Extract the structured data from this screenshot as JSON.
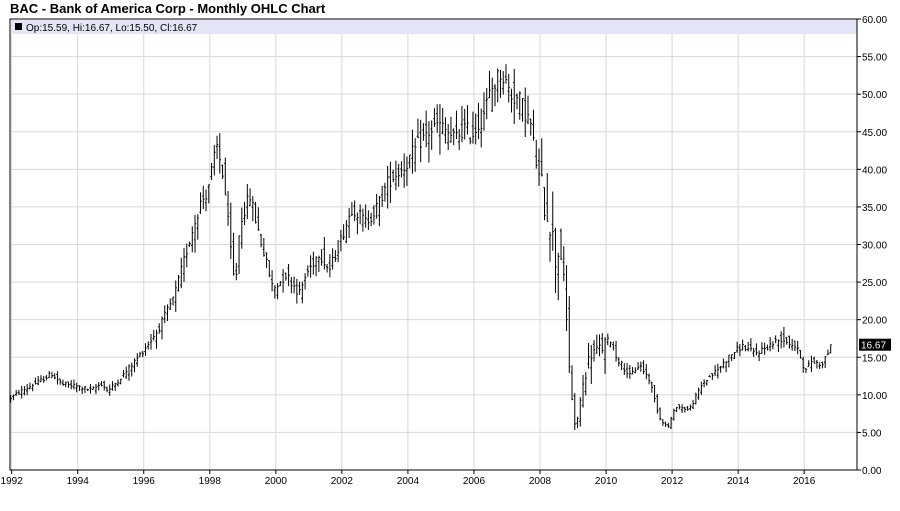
{
  "header": {
    "title": "BAC - Bank of America Corp - Monthly OHLC Chart"
  },
  "legend": {
    "text": "Op:15.59, Hi:16.67, Lo:15.50, Cl:16.67"
  },
  "last_price_label": "16.67",
  "colors": {
    "bar": "#000000",
    "grid": "#d8d8d8",
    "legend_band": "#e4e6f7",
    "frame": "#000000"
  },
  "chart_data": {
    "type": "ohlc",
    "grid": true,
    "x_unit": "year",
    "x_ticks": [
      "1992",
      "1994",
      "1996",
      "1998",
      "2000",
      "2002",
      "2004",
      "2006",
      "2008",
      "2010",
      "2012",
      "2014",
      "2016"
    ],
    "y_ticks": [
      "0.00",
      "5.00",
      "10.00",
      "15.00",
      "20.00",
      "25.00",
      "30.00",
      "35.00",
      "40.00",
      "45.00",
      "50.00",
      "55.00",
      "60.00"
    ],
    "xlim": [
      1991.95,
      2017.6
    ],
    "ylim": [
      0,
      60
    ],
    "last": {
      "open": 15.59,
      "high": 16.67,
      "low": 15.5,
      "close": 16.67
    },
    "close_path": [
      [
        1992.0,
        9.5
      ],
      [
        1992.5,
        10.8
      ],
      [
        1993.0,
        12.0
      ],
      [
        1993.3,
        12.8
      ],
      [
        1993.6,
        11.4
      ],
      [
        1994.0,
        11.2
      ],
      [
        1994.5,
        10.6
      ],
      [
        1994.8,
        11.5
      ],
      [
        1995.0,
        10.5
      ],
      [
        1995.5,
        12.8
      ],
      [
        1996.0,
        15.5
      ],
      [
        1996.5,
        18.5
      ],
      [
        1997.0,
        23.0
      ],
      [
        1997.5,
        31.0
      ],
      [
        1997.8,
        35.5
      ],
      [
        1998.0,
        37.0
      ],
      [
        1998.3,
        43.0
      ],
      [
        1998.5,
        39.0
      ],
      [
        1998.7,
        30.0
      ],
      [
        1998.85,
        24.0
      ],
      [
        1999.0,
        33.0
      ],
      [
        1999.3,
        36.5
      ],
      [
        1999.6,
        31.0
      ],
      [
        2000.0,
        24.0
      ],
      [
        2000.4,
        26.0
      ],
      [
        2000.8,
        23.5
      ],
      [
        2001.0,
        26.0
      ],
      [
        2001.4,
        29.0
      ],
      [
        2001.7,
        26.5
      ],
      [
        2002.0,
        30.0
      ],
      [
        2002.4,
        35.0
      ],
      [
        2002.8,
        33.0
      ],
      [
        2003.1,
        34.5
      ],
      [
        2003.5,
        38.5
      ],
      [
        2004.0,
        40.5
      ],
      [
        2004.5,
        44.0
      ],
      [
        2005.0,
        46.0
      ],
      [
        2005.5,
        44.0
      ],
      [
        2005.8,
        45.5
      ],
      [
        2006.0,
        44.5
      ],
      [
        2006.3,
        46.5
      ],
      [
        2006.6,
        50.5
      ],
      [
        2006.9,
        53.0
      ],
      [
        2007.2,
        50.0
      ],
      [
        2007.5,
        49.0
      ],
      [
        2007.8,
        46.0
      ],
      [
        2008.0,
        40.0
      ],
      [
        2008.2,
        36.0
      ],
      [
        2008.4,
        33.0
      ],
      [
        2008.55,
        28.0
      ],
      [
        2008.7,
        30.0
      ],
      [
        2008.85,
        22.0
      ],
      [
        2009.0,
        12.0
      ],
      [
        2009.15,
        5.0
      ],
      [
        2009.35,
        10.5
      ],
      [
        2009.6,
        15.5
      ],
      [
        2009.9,
        16.0
      ],
      [
        2010.2,
        17.5
      ],
      [
        2010.4,
        15.0
      ],
      [
        2010.8,
        12.5
      ],
      [
        2011.1,
        14.0
      ],
      [
        2011.4,
        12.0
      ],
      [
        2011.7,
        7.0
      ],
      [
        2011.95,
        5.6
      ],
      [
        2012.2,
        8.5
      ],
      [
        2012.6,
        8.0
      ],
      [
        2013.0,
        11.5
      ],
      [
        2013.5,
        13.5
      ],
      [
        2013.9,
        15.5
      ],
      [
        2014.2,
        16.5
      ],
      [
        2014.6,
        15.5
      ],
      [
        2015.0,
        16.5
      ],
      [
        2015.4,
        17.5
      ],
      [
        2015.8,
        16.5
      ],
      [
        2016.0,
        15.0
      ],
      [
        2016.1,
        13.0
      ],
      [
        2016.3,
        14.5
      ],
      [
        2016.6,
        14.0
      ],
      [
        2016.8,
        15.6
      ]
    ]
  }
}
